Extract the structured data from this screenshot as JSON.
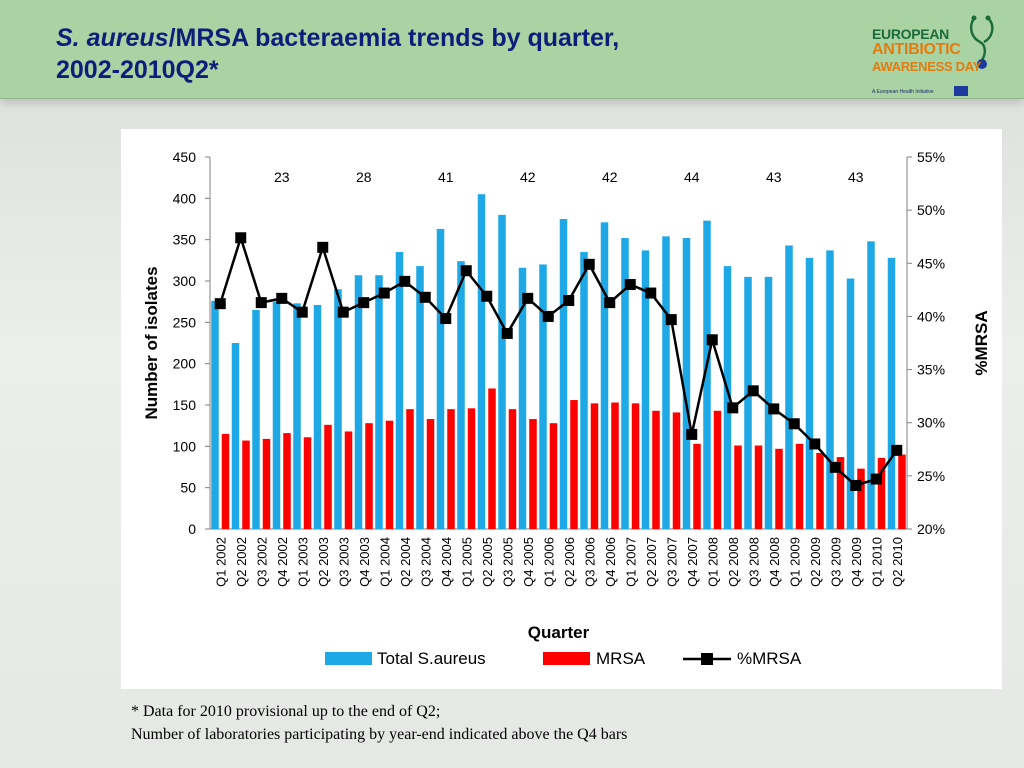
{
  "slide": {
    "title_italic": "S. aureus",
    "title_rest": "/MRSA bacteraemia trends by quarter,",
    "title_line2": "2002-2010Q2*",
    "footnote_line1": "* Data for 2010 provisional up to the end of Q2;",
    "footnote_line2": "Number of laboratories participating by year-end indicated above the Q4 bars"
  },
  "logo": {
    "line1": "EUROPEAN",
    "line2": "ANTIBIOTIC",
    "line3": "AWARENESS DAY",
    "tagline": "A European Health Initiative",
    "colors": {
      "green": "#1d6a3a",
      "orange": "#e07d10",
      "flag": "#1d3a9e"
    },
    "icon": "stethoscope-icon"
  },
  "chart_data": {
    "type": "bar",
    "title": "",
    "xlabel": "Quarter",
    "ylabel": "Number of isolates",
    "y2label": "%MRSA",
    "ylim": [
      0,
      450
    ],
    "yticks": [
      0,
      50,
      100,
      150,
      200,
      250,
      300,
      350,
      400,
      450
    ],
    "y2lim": [
      20,
      55
    ],
    "y2ticks": [
      "20%",
      "25%",
      "30%",
      "35%",
      "40%",
      "45%",
      "50%",
      "55%"
    ],
    "grid": false,
    "legend_position": "bottom",
    "categories": [
      "Q1 2002",
      "Q2 2002",
      "Q3 2002",
      "Q4 2002",
      "Q1 2003",
      "Q2 2003",
      "Q3 2003",
      "Q4 2003",
      "Q1 2004",
      "Q2 2004",
      "Q3 2004",
      "Q4 2004",
      "Q1 2005",
      "Q2 2005",
      "Q3 2005",
      "Q4 2005",
      "Q1 2006",
      "Q2 2006",
      "Q3 2006",
      "Q4 2006",
      "Q1 2007",
      "Q2 2007",
      "Q3 2007",
      "Q4 2007",
      "Q1 2008",
      "Q2 2008",
      "Q3 2008",
      "Q4 2008",
      "Q1 2009",
      "Q2 2009",
      "Q3 2009",
      "Q4 2009",
      "Q1 2010",
      "Q2 2010"
    ],
    "series": [
      {
        "name": "Total S.aureus",
        "kind": "bar",
        "axis": "left",
        "color": "#1fa8e6",
        "values": [
          276,
          225,
          265,
          275,
          273,
          271,
          290,
          307,
          307,
          335,
          318,
          363,
          324,
          405,
          380,
          316,
          320,
          375,
          335,
          371,
          352,
          337,
          354,
          352,
          373,
          318,
          305,
          305,
          343,
          328,
          337,
          303,
          348,
          328
        ]
      },
      {
        "name": "MRSA",
        "kind": "bar",
        "axis": "left",
        "color": "#ff0000",
        "values": [
          115,
          107,
          109,
          116,
          111,
          126,
          118,
          128,
          131,
          145,
          133,
          145,
          146,
          170,
          145,
          133,
          128,
          156,
          152,
          153,
          152,
          143,
          141,
          103,
          143,
          101,
          101,
          97,
          103,
          92,
          87,
          73,
          86,
          90
        ]
      },
      {
        "name": "%MRSA",
        "kind": "line",
        "axis": "right",
        "color": "#000000",
        "values": [
          41.2,
          47.4,
          41.3,
          41.7,
          40.4,
          46.5,
          40.4,
          41.3,
          42.2,
          43.3,
          41.8,
          39.8,
          44.3,
          41.9,
          38.4,
          41.7,
          40.0,
          41.5,
          44.9,
          41.3,
          43.0,
          42.2,
          39.7,
          28.9,
          37.8,
          31.4,
          33.0,
          31.3,
          29.9,
          28.0,
          25.8,
          24.1,
          24.7,
          27.4
        ]
      }
    ],
    "annotations": [
      {
        "category": "Q4 2002",
        "text": "23"
      },
      {
        "category": "Q4 2003",
        "text": "28"
      },
      {
        "category": "Q4 2004",
        "text": "41"
      },
      {
        "category": "Q4 2005",
        "text": "42"
      },
      {
        "category": "Q4 2006",
        "text": "42"
      },
      {
        "category": "Q4 2007",
        "text": "44"
      },
      {
        "category": "Q4 2008",
        "text": "43"
      },
      {
        "category": "Q4 2009",
        "text": "43"
      }
    ]
  }
}
